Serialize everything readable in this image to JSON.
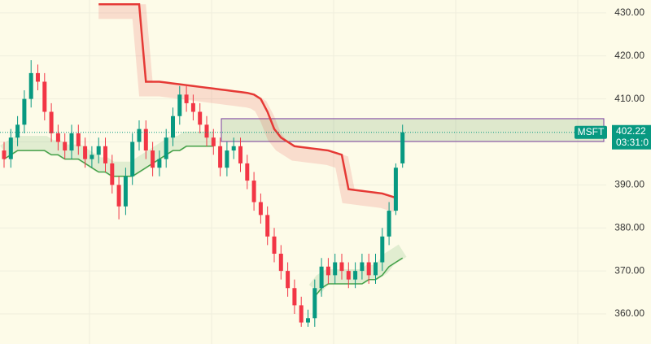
{
  "chart_data": {
    "type": "candlestick",
    "symbol": "MSFT",
    "countdown": "03:31:0",
    "open": [
      398,
      396,
      401,
      404,
      410,
      416,
      414,
      407,
      402,
      400,
      398,
      402,
      399,
      396,
      397,
      399,
      395,
      390,
      385,
      392,
      400,
      403,
      398,
      394,
      396,
      401,
      406,
      411,
      409,
      407,
      404,
      401,
      399,
      394,
      398,
      399,
      395,
      391,
      386,
      383,
      378,
      374,
      370,
      366,
      362,
      358,
      359,
      366,
      371,
      369,
      372,
      370,
      368,
      370,
      372,
      369,
      372,
      378,
      384,
      395
    ],
    "high": [
      400,
      403,
      406,
      412,
      419,
      418,
      416,
      409,
      404,
      402,
      404,
      404,
      401,
      399,
      401,
      401,
      397,
      392,
      394,
      402,
      405,
      405,
      400,
      398,
      403,
      408,
      413,
      413,
      411,
      409,
      406,
      403,
      401,
      400,
      401,
      401,
      397,
      393,
      388,
      385,
      380,
      376,
      372,
      368,
      364,
      361,
      368,
      373,
      373,
      374,
      374,
      372,
      372,
      374,
      374,
      374,
      380,
      386,
      395,
      404
    ],
    "low": [
      394,
      394,
      399,
      402,
      408,
      412,
      405,
      400,
      398,
      396,
      396,
      397,
      394,
      394,
      395,
      393,
      388,
      382,
      383,
      390,
      398,
      396,
      392,
      392,
      394,
      399,
      404,
      407,
      405,
      402,
      399,
      397,
      392,
      392,
      396,
      393,
      389,
      384,
      381,
      376,
      372,
      368,
      364,
      360,
      357,
      357,
      357,
      364,
      367,
      367,
      368,
      366,
      366,
      368,
      367,
      367,
      370,
      376,
      383,
      394
    ],
    "close": [
      396,
      401,
      404,
      410,
      416,
      414,
      407,
      402,
      400,
      398,
      402,
      399,
      396,
      397,
      399,
      395,
      390,
      385,
      392,
      400,
      403,
      398,
      394,
      396,
      401,
      406,
      411,
      409,
      407,
      404,
      401,
      399,
      394,
      398,
      399,
      395,
      391,
      386,
      383,
      378,
      374,
      370,
      366,
      362,
      358,
      359,
      366,
      371,
      369,
      372,
      370,
      368,
      370,
      372,
      369,
      372,
      378,
      384,
      394,
      402.22
    ],
    "bands": [
      {
        "color": "#e53935",
        "values": [
          null,
          null,
          null,
          null,
          null,
          null,
          null,
          null,
          null,
          null,
          null,
          null,
          null,
          null,
          432,
          432,
          432,
          432,
          432,
          432,
          432,
          414,
          414,
          414,
          413.8,
          413.6,
          413.4,
          413.2,
          413,
          412.8,
          412.6,
          412.4,
          412.2,
          412,
          411.8,
          411.6,
          411.4,
          411,
          410,
          407,
          403,
          401,
          400,
          399,
          398.8,
          398.6,
          398.4,
          398.2,
          398,
          397.5,
          397,
          389,
          388.8,
          388.6,
          388.4,
          388.2,
          388,
          387.5,
          387,
          null
        ]
      },
      {
        "color": "#43a047",
        "values": [
          396,
          397,
          398,
          398,
          398,
          398,
          398,
          397,
          397,
          396,
          396,
          396,
          395,
          394,
          393,
          393,
          392,
          392,
          392,
          392,
          393,
          394,
          395,
          396,
          397,
          398,
          398,
          399,
          399,
          399,
          399,
          399,
          null,
          null,
          null,
          null,
          null,
          null,
          null,
          null,
          null,
          null,
          null,
          null,
          null,
          null,
          364,
          366,
          367,
          367,
          367,
          367,
          367,
          367,
          368,
          368,
          369,
          371,
          372,
          373
        ]
      }
    ],
    "zone": {
      "top": 405.4,
      "bottom": 400.1,
      "color": "#2e7d32"
    },
    "up_color": "#089981",
    "down_color": "#f23645",
    "ylim": [
      353,
      433
    ],
    "yticks": [
      {
        "value": 360,
        "label": "360.00"
      },
      {
        "value": 370,
        "label": "370.00"
      },
      {
        "value": 380,
        "label": "380.00"
      },
      {
        "value": 390,
        "label": "390.00"
      },
      {
        "value": 400,
        "label": "400.00"
      },
      {
        "value": 410,
        "label": "410.00"
      },
      {
        "value": 420,
        "label": "420.00"
      },
      {
        "value": 430,
        "label": "430.00"
      }
    ],
    "grid": true
  }
}
